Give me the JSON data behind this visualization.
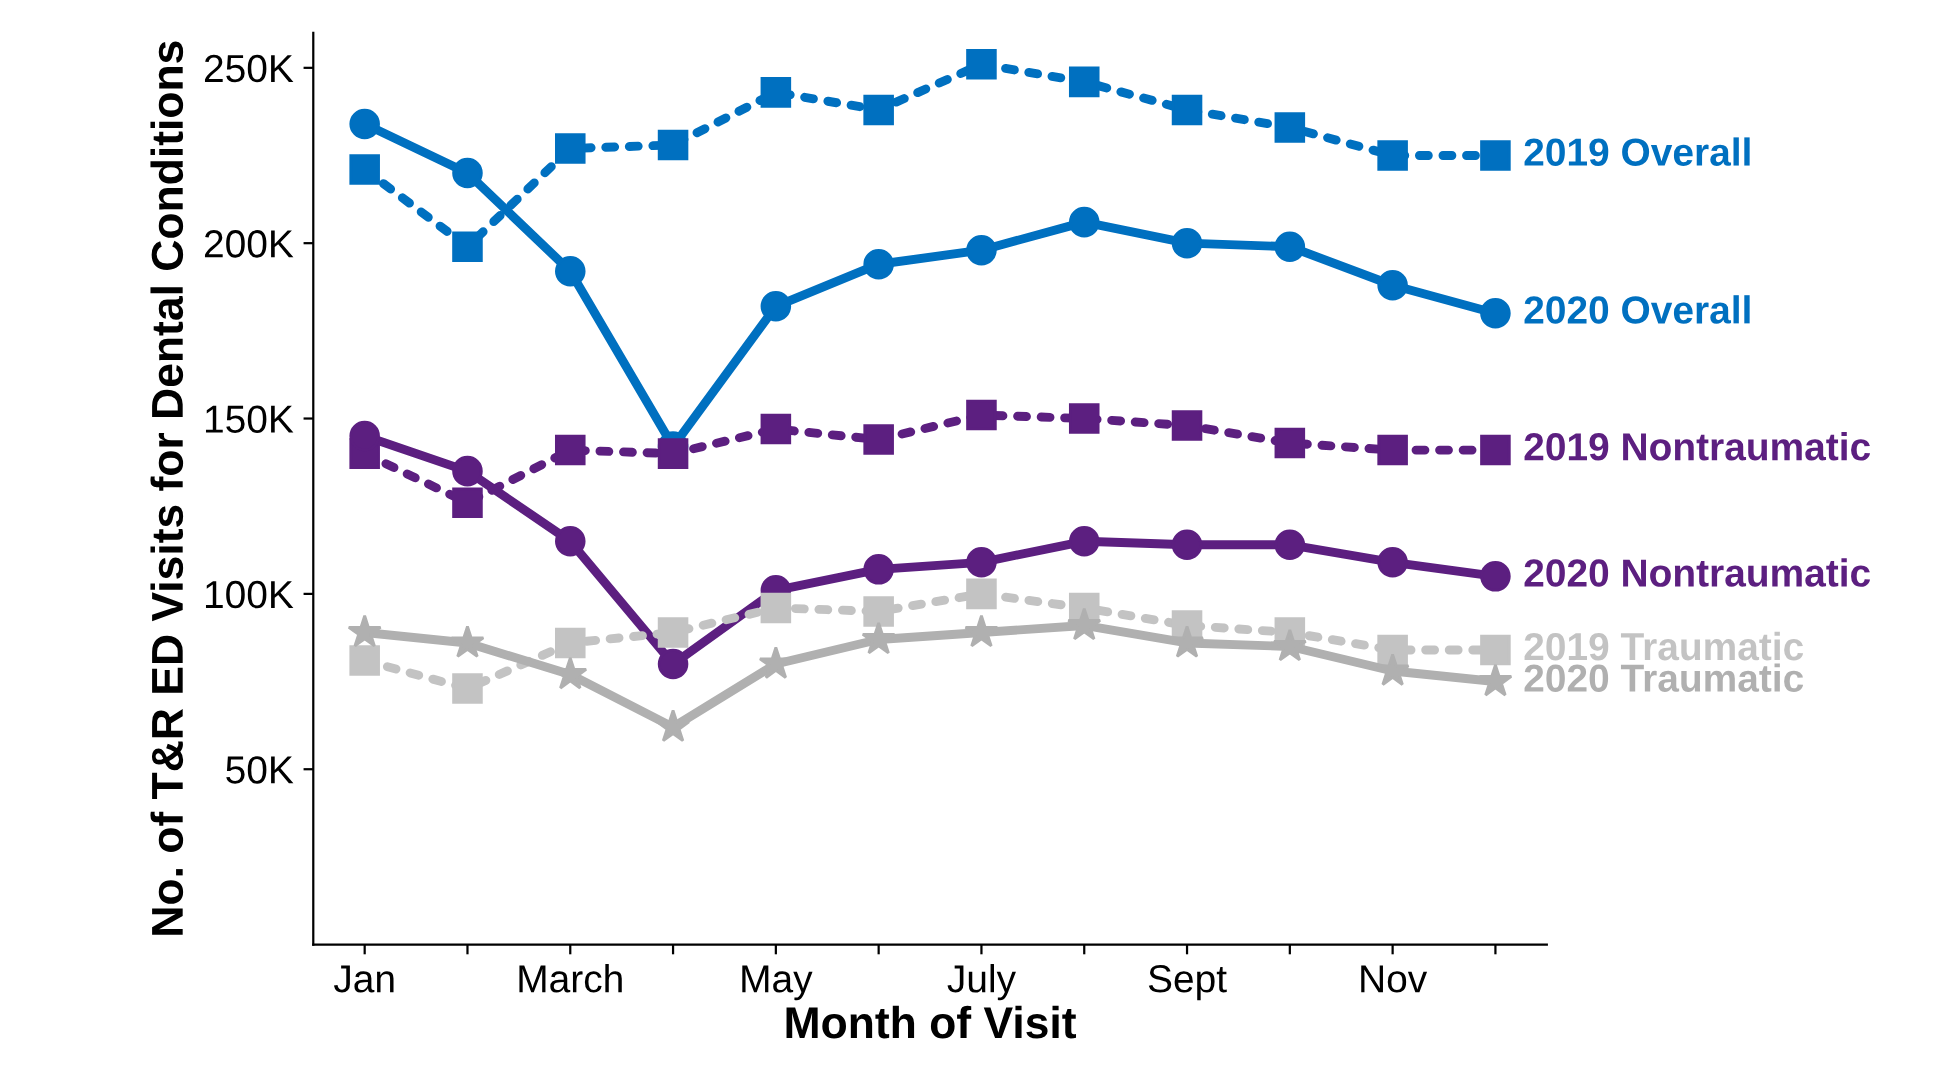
{
  "chart_data": {
    "type": "line",
    "xlabel": "Month of Visit",
    "ylabel": "No. of T&R ED Visits for Dental Conditions",
    "categories": [
      "Jan",
      null,
      "March",
      null,
      "May",
      null,
      "July",
      null,
      "Sept",
      null,
      "Nov",
      null
    ],
    "ylim": [
      0,
      260
    ],
    "yticks": [
      {
        "value": 50,
        "label": "50K"
      },
      {
        "value": 100,
        "label": "100K"
      },
      {
        "value": 150,
        "label": "150K"
      },
      {
        "value": 200,
        "label": "200K"
      },
      {
        "value": 250,
        "label": "250K"
      }
    ],
    "grid": false,
    "legend": false,
    "series": [
      {
        "name": "2019 Overall",
        "color": "#0070c0",
        "marker": "square",
        "line_style": "dotted",
        "values": [
          221,
          199,
          227,
          228,
          243,
          238,
          251,
          246,
          238,
          233,
          225,
          225
        ]
      },
      {
        "name": "2020 Overall",
        "color": "#0070c0",
        "marker": "circle",
        "line_style": "solid",
        "values": [
          234,
          220,
          192,
          142,
          182,
          194,
          198,
          206,
          200,
          199,
          188,
          180
        ]
      },
      {
        "name": "2019 Nontraumatic",
        "color": "#5c1f80",
        "marker": "square",
        "line_style": "dotted",
        "values": [
          140,
          126,
          141,
          140,
          147,
          144,
          151,
          150,
          148,
          143,
          141,
          141
        ]
      },
      {
        "name": "2020 Nontraumatic",
        "color": "#5c1f80",
        "marker": "circle",
        "line_style": "solid",
        "values": [
          145,
          135,
          115,
          80,
          101,
          107,
          109,
          115,
          114,
          114,
          109,
          105
        ]
      },
      {
        "name": "2019 Traumatic",
        "color": "#c3c3c3",
        "marker": "square",
        "line_style": "dotted",
        "values": [
          81,
          73,
          86,
          89,
          96,
          95,
          100,
          96,
          91,
          89,
          84,
          84
        ]
      },
      {
        "name": "2020 Traumatic",
        "color": "#b0b0b0",
        "marker": "star",
        "line_style": "solid",
        "values": [
          89,
          86,
          77,
          62,
          80,
          87,
          89,
          91,
          86,
          85,
          78,
          75
        ]
      }
    ]
  }
}
